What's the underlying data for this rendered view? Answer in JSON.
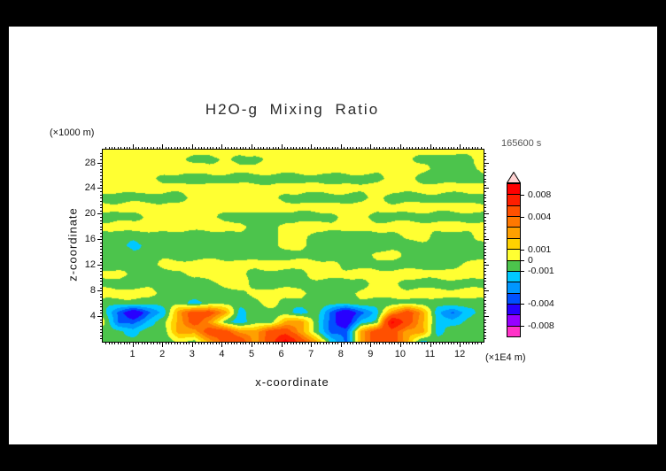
{
  "title": "H2O-g Mixing Ratio",
  "timestamp": "165600 s",
  "axes": {
    "xlabel": "x-coordinate",
    "ylabel": "z-coordinate",
    "x_unit": "(×1E4 m)",
    "y_unit": "(×1000 m)",
    "x_ticks": [
      1,
      2,
      3,
      4,
      5,
      6,
      7,
      8,
      9,
      10,
      11,
      12
    ],
    "y_ticks": [
      4,
      8,
      12,
      16,
      20,
      24,
      28
    ],
    "x_range": [
      0,
      12.8
    ],
    "z_range": [
      0,
      30
    ],
    "x_minor_step": 0.1,
    "y_minor_step": 0.5
  },
  "colorbar": {
    "labels": [
      "0.008",
      "0.004",
      "0.001",
      "0",
      "-0.001",
      "-0.004",
      "-0.008"
    ],
    "label_band_offsets": [
      1,
      3,
      6,
      7,
      8,
      11,
      13
    ],
    "arrow_color": "#ffd2d2",
    "band_colors": [
      "#ff32c8",
      "#9600ff",
      "#2800ff",
      "#0050ff",
      "#0096ff",
      "#00c8ff",
      "#4cc44c",
      "#ffff32",
      "#ffd200",
      "#ffa000",
      "#ff7800",
      "#ff5000",
      "#ff1e00",
      "#ff0000"
    ]
  },
  "chart_data": {
    "type": "heatmap",
    "title": "H2O-g Mixing Ratio",
    "xlabel": "x-coordinate (×1E4 m)",
    "ylabel": "z-coordinate (×1000 m)",
    "time_label": "165600 s",
    "x_range": [
      0,
      12.8
    ],
    "z_range": [
      0,
      30
    ],
    "levels": [
      -0.008,
      -0.006,
      -0.004,
      -0.003,
      -0.002,
      -0.001,
      0,
      0.001,
      0.002,
      0.003,
      0.004,
      0.006,
      0.008
    ],
    "value_scale": 0.001,
    "note": "grid values are mixing-ratio anomaly in units of 0.001; rows run top (z=30) to bottom (z=0), columns left (x=0) to right (x=12.8)",
    "grid": [
      [
        0.5,
        0.5,
        0.5,
        0.5,
        0.5,
        0.5,
        0.5,
        0.5,
        0.5,
        0.5,
        0.5,
        0.5,
        0.5,
        0.5,
        0.5,
        0.5,
        0.5,
        0.5,
        0.5,
        0.5,
        0.5,
        0.5,
        0.5,
        0.5,
        0.5,
        0.5
      ],
      [
        0.5,
        0.5,
        0.5,
        0.5,
        0.5,
        0.5,
        -0.5,
        -0.5,
        0.5,
        -0.5,
        -0.5,
        0.5,
        0.5,
        0.5,
        0.5,
        0.5,
        0.5,
        0.5,
        0.5,
        0.5,
        0.5,
        -0.5,
        -0.5,
        -0.5,
        -0.5,
        0.5
      ],
      [
        0.5,
        0.5,
        0.5,
        0.5,
        0.5,
        0.5,
        0.5,
        0.5,
        0.5,
        0.5,
        0.5,
        0.5,
        0.5,
        0.5,
        0.5,
        0.5,
        0.5,
        0.5,
        0.5,
        0.5,
        0.5,
        0.5,
        -0.5,
        -0.5,
        -0.5,
        0.5
      ],
      [
        0.5,
        0.5,
        0.5,
        0.5,
        -0.5,
        -0.5,
        -0.5,
        -0.5,
        -0.5,
        -0.5,
        -0.5,
        -0.5,
        -0.5,
        -0.5,
        -0.5,
        -0.5,
        -0.5,
        -0.5,
        -0.5,
        0.5,
        0.5,
        -0.5,
        -0.5,
        -0.5,
        -0.5,
        -0.5
      ],
      [
        0.5,
        0.5,
        0.5,
        0.5,
        0.5,
        0.5,
        0.5,
        0.5,
        0.5,
        0.5,
        0.5,
        0.5,
        0.5,
        0.5,
        0.5,
        0.5,
        0.5,
        0.5,
        0.5,
        0.5,
        0.5,
        0.5,
        0.5,
        0.5,
        0.5,
        0.5
      ],
      [
        -0.5,
        -0.5,
        -0.5,
        -0.5,
        -0.5,
        -0.5,
        0.5,
        0.5,
        0.5,
        0.5,
        0.5,
        0.5,
        -0.5,
        -0.5,
        -0.5,
        -0.5,
        -0.5,
        -0.5,
        0.5,
        -0.5,
        -0.5,
        -0.5,
        -0.5,
        -0.5,
        -0.5,
        -0.5
      ],
      [
        0.5,
        0.5,
        0.5,
        0.5,
        0.5,
        0.5,
        0.5,
        0.5,
        0.5,
        0.5,
        0.5,
        0.5,
        0.5,
        0.5,
        0.5,
        0.5,
        0.5,
        0.5,
        0.5,
        0.5,
        0.5,
        0.5,
        0.5,
        0.5,
        0.5,
        0.5
      ],
      [
        -0.5,
        -0.5,
        -0.5,
        0.5,
        0.5,
        0.5,
        0.5,
        0.5,
        -0.5,
        -0.5,
        -0.5,
        -0.5,
        -0.5,
        -0.5,
        -0.5,
        -0.5,
        0.5,
        0.5,
        -0.5,
        -0.5,
        -0.5,
        -0.5,
        -0.5,
        -0.5,
        -0.5,
        -0.5
      ],
      [
        0.5,
        0.5,
        0.5,
        0.5,
        0.5,
        0.5,
        0.5,
        0.5,
        0.5,
        0.5,
        -0.5,
        -0.5,
        0.5,
        0.5,
        0.5,
        0.5,
        0.5,
        0.5,
        0.5,
        0.5,
        0.5,
        0.5,
        0.5,
        0.5,
        0.5,
        0.5
      ],
      [
        -0.5,
        -0.5,
        -0.5,
        -0.5,
        -0.5,
        -0.5,
        -0.5,
        -0.5,
        -0.5,
        -0.5,
        -0.5,
        -0.5,
        0.5,
        0.5,
        -0.5,
        -0.5,
        -0.5,
        -0.5,
        -0.5,
        -0.5,
        0.5,
        0.5,
        -0.5,
        -0.5,
        -0.5,
        0.5
      ],
      [
        -0.5,
        -0.5,
        -1.5,
        -0.5,
        -0.5,
        -0.5,
        -0.5,
        -0.5,
        -0.5,
        -0.5,
        -0.5,
        -0.5,
        0.5,
        0.5,
        -0.5,
        -0.5,
        -0.5,
        -0.5,
        -0.5,
        -0.5,
        -0.5,
        -0.5,
        -0.5,
        -0.5,
        -0.5,
        -0.5
      ],
      [
        -0.5,
        -0.5,
        -0.5,
        -0.5,
        -0.5,
        -0.5,
        -0.5,
        -0.5,
        -0.5,
        -0.5,
        -0.5,
        -0.5,
        -0.5,
        -0.5,
        -0.5,
        -0.5,
        -0.5,
        -0.5,
        0.5,
        0.5,
        -0.5,
        -0.5,
        -0.5,
        -0.5,
        -0.5,
        -0.5
      ],
      [
        -0.5,
        -0.5,
        -0.5,
        -0.5,
        0.5,
        0.5,
        0.5,
        0.5,
        0.5,
        0.5,
        0.5,
        0.5,
        0.5,
        0.5,
        0.5,
        0.5,
        -0.5,
        -0.5,
        -0.5,
        -0.5,
        -0.5,
        -0.5,
        -0.5,
        -0.5,
        0.5,
        0.5
      ],
      [
        0.5,
        0.5,
        -0.5,
        -0.5,
        -0.5,
        -0.5,
        0.5,
        0.5,
        0.5,
        0.5,
        -0.5,
        -0.5,
        -0.5,
        -0.5,
        0.5,
        0.5,
        0.5,
        0.5,
        0.5,
        0.5,
        0.5,
        0.5,
        0.5,
        0.5,
        0.5,
        0.5
      ],
      [
        -0.5,
        -0.5,
        -0.5,
        -0.5,
        -0.5,
        -0.5,
        -0.5,
        -0.5,
        0.5,
        0.5,
        -0.5,
        -0.5,
        -0.5,
        -0.5,
        -0.5,
        -0.5,
        -0.5,
        -0.5,
        0.5,
        0.5,
        -0.5,
        -0.5,
        -0.5,
        -0.5,
        -0.5,
        -0.5
      ],
      [
        0.5,
        0.5,
        0.5,
        0.5,
        -0.5,
        -0.5,
        -0.5,
        -0.5,
        -0.5,
        -0.5,
        0.5,
        0.5,
        0.5,
        0.5,
        -0.5,
        -0.5,
        -0.5,
        0.5,
        0.5,
        0.5,
        0.5,
        0.5,
        0.5,
        0.5,
        0.5,
        0.5
      ],
      [
        -0.5,
        -0.5,
        -0.5,
        -0.5,
        -0.5,
        -0.5,
        -1.5,
        -0.5,
        -0.5,
        -0.5,
        -0.5,
        0.5,
        -0.5,
        -0.5,
        -0.5,
        -0.5,
        -0.5,
        -0.5,
        -0.5,
        -0.5,
        -0.5,
        -0.5,
        -0.5,
        -0.5,
        -0.5,
        -0.5
      ],
      [
        -0.5,
        -3.3,
        -5.5,
        -3.3,
        -1.5,
        2.5,
        5,
        5,
        2.5,
        -1.5,
        -0.5,
        -0.5,
        -0.5,
        -1.5,
        -0.5,
        -3.3,
        -5.5,
        -3.3,
        -1.5,
        2.5,
        5,
        2.5,
        -1.5,
        -3.3,
        -1.5,
        -0.5
      ],
      [
        0.5,
        -3.3,
        -3.3,
        -1.5,
        -0.5,
        2.5,
        5,
        2.5,
        -0.5,
        -1.5,
        -0.5,
        -0.5,
        2.5,
        2.5,
        -0.5,
        -3.3,
        -5.5,
        -1.5,
        -0.5,
        8.6,
        5,
        2.5,
        -1.5,
        -1.5,
        -0.5,
        -0.5
      ],
      [
        -0.5,
        -0.5,
        -1.5,
        -0.5,
        -0.5,
        2.5,
        2.5,
        5,
        5,
        2.5,
        2.5,
        5,
        5,
        2.5,
        -0.5,
        -3.3,
        -3.3,
        2.5,
        5,
        5,
        2.5,
        2.5,
        -1.5,
        -0.5,
        -0.5,
        -0.5
      ],
      [
        -0.5,
        -0.5,
        -0.5,
        -0.5,
        -0.5,
        0.5,
        -0.5,
        2.5,
        5,
        5,
        2.5,
        5,
        8.6,
        5,
        2.5,
        -1.5,
        -3.3,
        2.5,
        5,
        5,
        2.5,
        -1.5,
        -0.5,
        -0.5,
        -0.5,
        -0.5
      ]
    ]
  }
}
